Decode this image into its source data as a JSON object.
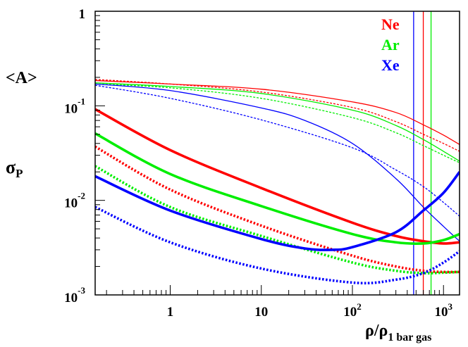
{
  "chart_data": {
    "type": "line",
    "xscale": "log",
    "yscale": "log",
    "xlim": [
      0.15,
      1500
    ],
    "ylim": [
      0.001,
      1
    ],
    "grid": false,
    "legend_position": "top-right",
    "ylabel_top": "<A>",
    "ylabel_bottom": "σ",
    "ylabel_bottom_sub": "P",
    "xlabel_main": "ρ/ρ",
    "xlabel_sub": "1 bar gas",
    "x_ticks": [
      {
        "value": 1,
        "base": "1",
        "exp": ""
      },
      {
        "value": 10,
        "base": "10",
        "exp": ""
      },
      {
        "value": 100,
        "base": "10",
        "exp": "2"
      },
      {
        "value": 1000,
        "base": "10",
        "exp": "3"
      }
    ],
    "y_ticks": [
      {
        "value": 1,
        "base": "1",
        "exp": ""
      },
      {
        "value": 0.1,
        "base": "10",
        "exp": "-1"
      },
      {
        "value": 0.01,
        "base": "10",
        "exp": "-2"
      },
      {
        "value": 0.001,
        "base": "10",
        "exp": "-3"
      }
    ],
    "legend": [
      {
        "label": "Ne",
        "color": "#ff0000"
      },
      {
        "label": "Ar",
        "color": "#00ee00"
      },
      {
        "label": "Xe",
        "color": "#0000ff"
      }
    ],
    "colors": {
      "Ne": "#ff0000",
      "Ar": "#00ee00",
      "Xe": "#0000ff"
    },
    "vertical_lines": [
      {
        "gas": "Xe",
        "x": 470
      },
      {
        "gas": "Ne",
        "x": 600
      },
      {
        "gas": "Ar",
        "x": 730
      }
    ],
    "series": [
      {
        "gas": "Ne",
        "style": "thin-solid",
        "x": [
          0.15,
          1,
          10,
          100,
          300,
          600,
          1000,
          1500
        ],
        "y": [
          0.185,
          0.17,
          0.15,
          0.11,
          0.085,
          0.063,
          0.049,
          0.039
        ]
      },
      {
        "gas": "Ne",
        "style": "thin-dotted",
        "x": [
          0.15,
          1,
          10,
          100,
          300,
          600,
          1000,
          1500
        ],
        "y": [
          0.19,
          0.17,
          0.14,
          0.096,
          0.068,
          0.05,
          0.04,
          0.033
        ]
      },
      {
        "gas": "Ar",
        "style": "thin-solid",
        "x": [
          0.15,
          1,
          10,
          100,
          300,
          600,
          1000,
          1500
        ],
        "y": [
          0.175,
          0.16,
          0.135,
          0.09,
          0.062,
          0.044,
          0.033,
          0.026
        ]
      },
      {
        "gas": "Ar",
        "style": "thin-dotted",
        "x": [
          0.15,
          1,
          10,
          100,
          300,
          600,
          1000,
          1500
        ],
        "y": [
          0.17,
          0.155,
          0.12,
          0.075,
          0.052,
          0.038,
          0.03,
          0.025
        ]
      },
      {
        "gas": "Xe",
        "style": "thin-solid",
        "x": [
          0.15,
          1,
          10,
          30,
          100,
          300,
          600,
          1000,
          1500
        ],
        "y": [
          0.17,
          0.145,
          0.095,
          0.07,
          0.04,
          0.017,
          0.0085,
          0.0053,
          0.0037
        ]
      },
      {
        "gas": "Xe",
        "style": "thin-dotted",
        "x": [
          0.15,
          1,
          10,
          100,
          300,
          600,
          1000,
          1500
        ],
        "y": [
          0.165,
          0.12,
          0.071,
          0.036,
          0.021,
          0.014,
          0.0095,
          0.0068
        ]
      },
      {
        "gas": "Ne",
        "style": "thick-solid",
        "x": [
          0.15,
          1,
          10,
          100,
          300,
          600,
          1000,
          1500
        ],
        "y": [
          0.092,
          0.034,
          0.0135,
          0.0058,
          0.0042,
          0.0037,
          0.0035,
          0.0036
        ]
      },
      {
        "gas": "Ne",
        "style": "thick-dotted",
        "x": [
          0.15,
          1,
          10,
          100,
          300,
          600,
          1000,
          1500
        ],
        "y": [
          0.037,
          0.013,
          0.0054,
          0.0026,
          0.002,
          0.0018,
          0.00175,
          0.00175
        ]
      },
      {
        "gas": "Ar",
        "style": "thick-solid",
        "x": [
          0.15,
          1,
          10,
          100,
          300,
          600,
          1000,
          1500
        ],
        "y": [
          0.051,
          0.019,
          0.0087,
          0.0044,
          0.0036,
          0.0035,
          0.0038,
          0.0044
        ]
      },
      {
        "gas": "Ar",
        "style": "thick-dotted",
        "x": [
          0.15,
          1,
          10,
          100,
          300,
          600,
          1000,
          1500
        ],
        "y": [
          0.023,
          0.0085,
          0.0042,
          0.0022,
          0.0018,
          0.0017,
          0.00172,
          0.00175
        ]
      },
      {
        "gas": "Xe",
        "style": "thick-solid",
        "x": [
          0.15,
          1,
          10,
          30,
          60,
          100,
          300,
          600,
          1000,
          1500
        ],
        "y": [
          0.018,
          0.0078,
          0.0039,
          0.0031,
          0.003,
          0.0032,
          0.0046,
          0.0078,
          0.012,
          0.02
        ]
      },
      {
        "gas": "Xe",
        "style": "thick-dotted",
        "x": [
          0.15,
          1,
          10,
          100,
          300,
          600,
          1000,
          1500
        ],
        "y": [
          0.0085,
          0.0036,
          0.0019,
          0.00135,
          0.00145,
          0.0017,
          0.0022,
          0.0029
        ]
      }
    ]
  }
}
